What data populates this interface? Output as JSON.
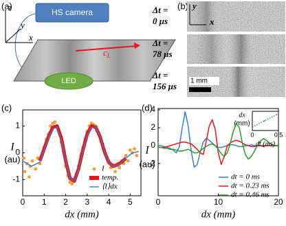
{
  "figure": {
    "panel_labels": [
      "(a)",
      "(b)",
      "(c)",
      "(d)"
    ],
    "diagram": {
      "camera": "HS camera",
      "led": "LED",
      "axes": [
        "z",
        "y",
        "x"
      ],
      "wave_speed": {
        "symbol": "c",
        "subscript": "L"
      }
    },
    "images": {
      "axes": [
        "y",
        "x"
      ],
      "delays": [
        [
          "Δt =",
          "0 μs"
        ],
        [
          "Δt =",
          "78 μs"
        ],
        [
          "Δt =",
          "156 μs"
        ]
      ],
      "scale_bar": "1 mm"
    }
  },
  "chart_data": [
    {
      "type": "line",
      "x_label": "dx (mm)",
      "y_label": "I",
      "y_unit": "(au)",
      "xlim": [
        0,
        5.5
      ],
      "ylim": [
        -1.6,
        1.6
      ],
      "xticks": [
        0,
        1,
        2,
        3,
        4,
        5
      ],
      "yticks": [
        -1,
        0,
        1
      ],
      "legend": "lower right",
      "series": [
        {
          "name": "I",
          "mode": "markers",
          "color": "#f39c3c",
          "x": [
            0.05,
            0.1,
            0.2,
            0.3,
            0.35,
            0.45,
            0.6,
            0.7,
            0.8,
            0.9,
            1.0,
            1.1,
            1.2,
            1.3,
            1.4,
            1.5,
            1.6,
            1.7,
            1.8,
            1.9,
            2.0,
            2.1,
            2.2,
            2.3,
            2.4,
            2.5,
            2.6,
            2.7,
            2.8,
            2.9,
            3.0,
            3.1,
            3.2,
            3.3,
            3.4,
            3.5,
            3.6,
            3.7,
            3.8,
            3.9,
            4.0,
            4.1,
            4.2,
            4.3,
            4.4,
            4.5,
            4.6,
            4.7,
            4.8,
            4.9,
            5.0,
            5.1,
            5.2,
            5.3
          ],
          "values": [
            -0.2,
            -0.7,
            -0.4,
            -0.9,
            -0.5,
            -0.3,
            -0.6,
            -0.2,
            -0.4,
            -0.1,
            0.2,
            0.5,
            0.7,
            1.0,
            1.1,
            1.15,
            0.95,
            0.8,
            0.4,
            0.05,
            -0.5,
            -0.85,
            -1.1,
            -1.15,
            -1.0,
            -0.8,
            -0.5,
            -0.1,
            0.2,
            0.5,
            0.8,
            1.0,
            1.1,
            1.05,
            1.0,
            0.8,
            0.55,
            0.35,
            0.1,
            -0.15,
            -0.3,
            -0.55,
            -0.45,
            -0.7,
            -0.4,
            -0.55,
            -0.3,
            -0.4,
            -0.1,
            -0.3,
            0.1,
            0.0,
            0.15,
            -0.1
          ]
        },
        {
          "name": "temp.",
          "mode": "band",
          "color": "#e8141b",
          "x": [
            0.8,
            1.0,
            1.2,
            1.4,
            1.6,
            1.8,
            2.0,
            2.2,
            2.4,
            2.6,
            2.8,
            3.0,
            3.2,
            3.4,
            3.6,
            3.8,
            4.0,
            4.2,
            4.4,
            4.6,
            4.8
          ],
          "values": [
            -0.3,
            0.15,
            0.6,
            0.95,
            1.0,
            0.55,
            -0.3,
            -0.95,
            -1.05,
            -0.6,
            0.1,
            0.7,
            1.0,
            0.95,
            0.6,
            0.05,
            -0.35,
            -0.5,
            -0.45,
            -0.35,
            -0.2
          ]
        },
        {
          "name": "⟨I⟩dx",
          "mode": "line",
          "color": "#3a7fc1",
          "x": [
            0,
            0.4,
            0.8,
            1.0,
            1.2,
            1.4,
            1.6,
            1.8,
            2.0,
            2.2,
            2.4,
            2.6,
            2.8,
            3.0,
            3.2,
            3.4,
            3.6,
            3.8,
            4.0,
            4.2,
            4.5,
            4.8,
            5.1,
            5.4
          ],
          "values": [
            -0.3,
            -0.5,
            -0.35,
            0.1,
            0.55,
            0.9,
            0.95,
            0.5,
            -0.3,
            -0.95,
            -1.05,
            -0.65,
            0.05,
            0.65,
            0.95,
            0.95,
            0.6,
            0.05,
            -0.35,
            -0.5,
            -0.45,
            -0.2,
            0.0,
            0.05
          ]
        }
      ]
    },
    {
      "type": "line",
      "x_label": "dx (mm)",
      "y_label": "I",
      "y_unit": "(au)",
      "xlim": [
        0,
        20
      ],
      "ylim": [
        -5.6,
        4.15
      ],
      "xticks": [
        0,
        10,
        20
      ],
      "yticks": [
        -2,
        0,
        2,
        4
      ],
      "legend": "lower right",
      "x": [
        0,
        0.5,
        1,
        1.5,
        2,
        2.5,
        3,
        3.5,
        4,
        4.5,
        5,
        5.5,
        6,
        6.5,
        7,
        7.5,
        8,
        8.5,
        9,
        9.5,
        10,
        10.5,
        11,
        11.5,
        12,
        12.5,
        13,
        13.5,
        14,
        14.5,
        15,
        15.5,
        16,
        16.5,
        17,
        17.5,
        18,
        18.5,
        19,
        19.5,
        20
      ],
      "series": [
        {
          "name": "dt = 0 ms",
          "mode": "line",
          "color": "#3a7fc1",
          "values": [
            0,
            0,
            -0.1,
            -0.2,
            -0.3,
            -0.5,
            -0.8,
            -0.2,
            2.0,
            3.8,
            2.2,
            -0.6,
            -2.4,
            -2.1,
            -0.7,
            0.4,
            0.8,
            0.6,
            0.3,
            0.0,
            -0.2,
            -0.2,
            -0.1,
            0,
            0.1,
            0.1,
            0,
            -0.1,
            -0.1,
            0,
            0,
            0.1,
            0,
            0,
            0,
            -0.1,
            0,
            0,
            0,
            0,
            0
          ]
        },
        {
          "name": "dt = 0.23 ms",
          "mode": "line",
          "color": "#e8141b",
          "values": [
            -0.2,
            -0.2,
            -0.2,
            -0.1,
            0,
            0.1,
            0.2,
            0.3,
            0.4,
            0.4,
            0.3,
            0.2,
            -0.1,
            -0.4,
            -0.8,
            -1.0,
            0.5,
            2.2,
            2.9,
            1.8,
            -0.8,
            -2.1,
            -1.2,
            0.0,
            0.3,
            0.5,
            0.6,
            0.5,
            0.3,
            0.1,
            0,
            -0.1,
            -0.1,
            0,
            0,
            0,
            0,
            0,
            0,
            0,
            0
          ]
        },
        {
          "name": "dt = 0.46 ms",
          "mode": "line",
          "color": "#2a9a2a",
          "values": [
            -0.2,
            -0.2,
            -0.3,
            -0.3,
            -0.4,
            -0.4,
            -0.5,
            -0.6,
            -0.6,
            -0.5,
            -0.4,
            -0.6,
            -0.8,
            -0.8,
            -0.6,
            -0.3,
            -0.1,
            0.1,
            0.2,
            0.0,
            -0.4,
            -0.9,
            -1.2,
            -0.8,
            0.3,
            1.6,
            2.5,
            2.0,
            0.3,
            -1.0,
            -1.5,
            -1.2,
            -0.6,
            0.0,
            0.5,
            0.8,
            0.6,
            0.3,
            0.1,
            0.0,
            0.0
          ]
        }
      ]
    },
    {
      "type": "line",
      "x_label": "dt (ms)",
      "y_label": "dx",
      "y_unit": "(mm)",
      "xlim": [
        0,
        0.5
      ],
      "ylim": [
        2,
        16
      ],
      "xticks": [
        0,
        0.5
      ],
      "yticks": [],
      "x": [
        0,
        0.23,
        0.46
      ],
      "series": [
        {
          "mode": "dotted",
          "color": "#3a7fc1",
          "values": [
            4.5,
            9,
            13.5
          ]
        }
      ]
    }
  ]
}
